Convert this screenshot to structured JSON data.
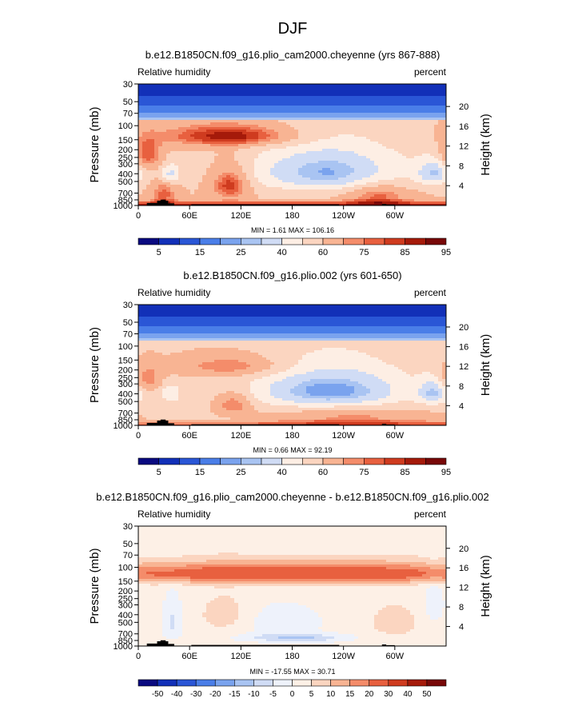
{
  "main_title": "DJF",
  "palette": {
    "abs": [
      "#0a0a80",
      "#1230b8",
      "#2a56d6",
      "#4a7ee8",
      "#7aa3ee",
      "#a9c4f2",
      "#d0dcf5",
      "#fdeee4",
      "#fbd5c0",
      "#f8b493",
      "#f48c6a",
      "#e8603f",
      "#cf3b1f",
      "#a51a0a",
      "#780808"
    ],
    "diff": [
      "#0a0a80",
      "#1230b8",
      "#2a56d6",
      "#4a7ee8",
      "#7aa3ee",
      "#a9c4f2",
      "#d0dcf5",
      "#eef2fb",
      "#fdf0e6",
      "#fbd5c0",
      "#f8b493",
      "#f48c6a",
      "#e8603f",
      "#cf3b1f",
      "#a51a0a",
      "#780808"
    ]
  },
  "chart_data": [
    {
      "type": "contour",
      "title": "b.e12.B1850CN.f09_g16.plio_cam2000.cheyenne (yrs 867-888)",
      "left_label": "Relative humidity",
      "right_label": "percent",
      "ylabel": "Pressure (mb)",
      "y2label": "Height (km)",
      "x_ticks": [
        "0",
        "60E",
        "120E",
        "180",
        "120W",
        "60W"
      ],
      "x_tick_lon": [
        0,
        60,
        120,
        180,
        240,
        300
      ],
      "p_ticks": [
        "30",
        "50",
        "70",
        "100",
        "150",
        "200",
        "250",
        "300",
        "400",
        "500",
        "700",
        "850",
        "1000"
      ],
      "p_values": [
        30,
        50,
        70,
        100,
        150,
        200,
        250,
        300,
        400,
        500,
        700,
        850,
        1000
      ],
      "h_ticks": [
        "20",
        "16",
        "12",
        "8",
        "4"
      ],
      "h_values": [
        20,
        16,
        12,
        8,
        4
      ],
      "stats": "MIN =    1.61   MAX =  106.16",
      "min": 1.61,
      "max": 106.16,
      "levels": [
        5,
        10,
        15,
        20,
        25,
        30,
        40,
        50,
        60,
        70,
        75,
        80,
        85,
        90,
        95
      ],
      "colorbar_labels": [
        "5",
        "15",
        "25",
        "40",
        "60",
        "75",
        "85",
        "95"
      ],
      "base": 60,
      "scale": 1.0,
      "features": [
        {
          "lon": 10,
          "p": 230,
          "sx": 12,
          "sp": 70,
          "a": 22
        },
        {
          "lon": 38,
          "p": 400,
          "sx": 8,
          "sp": 80,
          "a": -25
        },
        {
          "lon": 108,
          "p": 540,
          "sx": 15,
          "sp": 170,
          "a": 27
        },
        {
          "lon": 110,
          "p": 135,
          "sx": 55,
          "sp": 30,
          "a": 30
        },
        {
          "lon": 225,
          "p": 380,
          "sx": 65,
          "sp": 170,
          "a": -36
        },
        {
          "lon": 345,
          "p": 390,
          "sx": 12,
          "sp": 100,
          "a": -26
        },
        {
          "lon": 30,
          "p": 730,
          "sx": 10,
          "sp": 200,
          "a": 18
        },
        {
          "lon": 280,
          "p": 760,
          "sx": 25,
          "sp": 250,
          "a": 18
        }
      ],
      "low_level_boost": 28
    },
    {
      "type": "contour",
      "title": "b.e12.B1850CN.f09_g16.plio.002 (yrs 601-650)",
      "left_label": "Relative humidity",
      "right_label": "percent",
      "ylabel": "Pressure (mb)",
      "y2label": "Height (km)",
      "x_ticks": [
        "0",
        "60E",
        "120E",
        "180",
        "120W",
        "60W"
      ],
      "x_tick_lon": [
        0,
        60,
        120,
        180,
        240,
        300
      ],
      "p_ticks": [
        "30",
        "50",
        "70",
        "100",
        "150",
        "200",
        "250",
        "300",
        "400",
        "500",
        "700",
        "850",
        "1000"
      ],
      "p_values": [
        30,
        50,
        70,
        100,
        150,
        200,
        250,
        300,
        400,
        500,
        700,
        850,
        1000
      ],
      "h_ticks": [
        "20",
        "16",
        "12",
        "8",
        "4"
      ],
      "h_values": [
        20,
        16,
        12,
        8,
        4
      ],
      "stats": "MIN =    0.66   MAX =   92.19",
      "min": 0.66,
      "max": 92.19,
      "levels": [
        5,
        10,
        15,
        20,
        25,
        30,
        40,
        50,
        60,
        70,
        75,
        80,
        85,
        90,
        95
      ],
      "colorbar_labels": [
        "5",
        "15",
        "25",
        "40",
        "60",
        "75",
        "85",
        "95"
      ],
      "base": 58,
      "scale": 1.0,
      "features": [
        {
          "lon": 10,
          "p": 260,
          "sx": 12,
          "sp": 70,
          "a": 18
        },
        {
          "lon": 38,
          "p": 400,
          "sx": 8,
          "sp": 70,
          "a": -18
        },
        {
          "lon": 112,
          "p": 540,
          "sx": 15,
          "sp": 120,
          "a": 20
        },
        {
          "lon": 110,
          "p": 180,
          "sx": 45,
          "sp": 40,
          "a": 18
        },
        {
          "lon": 225,
          "p": 370,
          "sx": 60,
          "sp": 150,
          "a": -38
        },
        {
          "lon": 345,
          "p": 390,
          "sx": 12,
          "sp": 100,
          "a": -26
        },
        {
          "lon": 250,
          "p": 800,
          "sx": 60,
          "sp": 180,
          "a": 14
        }
      ],
      "low_level_boost": 22
    },
    {
      "type": "contour",
      "title": "b.e12.B1850CN.f09_g16.plio_cam2000.cheyenne - b.e12.B1850CN.f09_g16.plio.002",
      "left_label": "Relative humidity",
      "right_label": "percent",
      "ylabel": "Pressure (mb)",
      "y2label": "Height (km)",
      "x_ticks": [
        "0",
        "60E",
        "120E",
        "180",
        "120W",
        "60W"
      ],
      "x_tick_lon": [
        0,
        60,
        120,
        180,
        240,
        300
      ],
      "p_ticks": [
        "30",
        "50",
        "70",
        "100",
        "150",
        "200",
        "250",
        "300",
        "400",
        "500",
        "700",
        "850",
        "1000"
      ],
      "p_values": [
        30,
        50,
        70,
        100,
        150,
        200,
        250,
        300,
        400,
        500,
        700,
        850,
        1000
      ],
      "h_ticks": [
        "20",
        "16",
        "12",
        "8",
        "4"
      ],
      "h_values": [
        20,
        16,
        12,
        8,
        4
      ],
      "stats": "MIN =  -17.55   MAX =   30.71",
      "min": -17.55,
      "max": 30.71,
      "levels": [
        -50,
        -40,
        -30,
        -20,
        -15,
        -10,
        -5,
        0,
        5,
        10,
        15,
        20,
        30,
        40,
        50
      ],
      "colorbar_labels": [
        "-50",
        "-40",
        "-30",
        "-20",
        "-15",
        "-10",
        "-5",
        "0",
        "5",
        "10",
        "15",
        "20",
        "30",
        "40",
        "50"
      ],
      "base": 2,
      "scale": 1.0,
      "features": [
        {
          "lon": 180,
          "p": 120,
          "sx": 200,
          "sp": 25,
          "a": 26
        },
        {
          "lon": 100,
          "p": 400,
          "sx": 20,
          "sp": 150,
          "a": 6
        },
        {
          "lon": 40,
          "p": 500,
          "sx": 8,
          "sp": 200,
          "a": -8
        },
        {
          "lon": 185,
          "p": 790,
          "sx": 40,
          "sp": 70,
          "a": -13
        },
        {
          "lon": 170,
          "p": 500,
          "sx": 30,
          "sp": 150,
          "a": -6
        },
        {
          "lon": 300,
          "p": 500,
          "sx": 25,
          "sp": 200,
          "a": 5
        },
        {
          "lon": 345,
          "p": 300,
          "sx": 10,
          "sp": 150,
          "a": -5
        }
      ],
      "low_level_boost": 0
    }
  ]
}
